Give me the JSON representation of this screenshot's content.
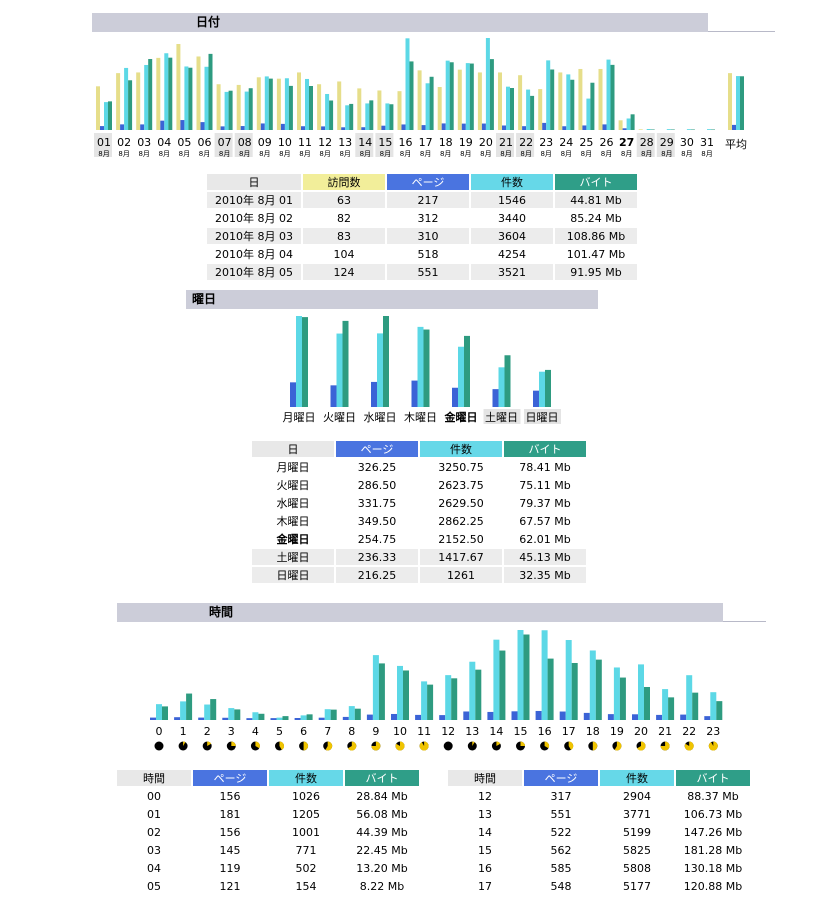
{
  "sections": {
    "date": "日付",
    "weekday": "曜日",
    "hour": "時間"
  },
  "colors": {
    "visits": "#e6de8a",
    "pages": "#3b63d6",
    "files": "#5cd8e6",
    "bytes": "#2e9b80",
    "header_bg": "#cccdd9"
  },
  "chart_data": [
    {
      "type": "bar",
      "name": "daily",
      "categories": [
        "01",
        "02",
        "03",
        "04",
        "05",
        "06",
        "07",
        "08",
        "09",
        "10",
        "11",
        "12",
        "13",
        "14",
        "15",
        "16",
        "17",
        "18",
        "19",
        "20",
        "21",
        "22",
        "23",
        "24",
        "25",
        "26",
        "27",
        "28",
        "29",
        "30",
        "31"
      ],
      "sublabel": "8月",
      "weekend_days": [
        "01",
        "07",
        "08",
        "14",
        "15",
        "21",
        "22",
        "28",
        "29"
      ],
      "current_day": "27",
      "avg_label": "平均",
      "series": [
        {
          "key": "visits",
          "values": [
            63,
            82,
            83,
            104,
            124,
            106,
            66,
            65,
            76,
            74,
            83,
            66,
            70,
            60,
            57,
            56,
            86,
            62,
            87,
            83,
            83,
            79,
            59,
            83,
            88,
            88,
            14,
            1,
            0,
            0,
            0
          ],
          "avg": 82
        },
        {
          "key": "pages",
          "values": [
            217,
            312,
            310,
            518,
            551,
            437,
            201,
            218,
            363,
            339,
            209,
            200,
            150,
            154,
            239,
            308,
            271,
            365,
            354,
            358,
            250,
            212,
            394,
            208,
            252,
            311,
            95,
            1,
            0,
            0,
            0
          ],
          "avg": 283
        },
        {
          "key": "files",
          "values": [
            1546,
            3440,
            3604,
            4254,
            3521,
            3504,
            2112,
            2129,
            2970,
            2868,
            2829,
            1996,
            1369,
            1473,
            1473,
            5081,
            2589,
            3844,
            3708,
            5099,
            2402,
            2240,
            3859,
            3082,
            1741,
            3902,
            638,
            56,
            47,
            45,
            46
          ],
          "avg": 2989
        },
        {
          "key": "bytes",
          "values": [
            1587,
            2756,
            3934,
            4009,
            3452,
            4219,
            2178,
            2316,
            2848,
            2445,
            2438,
            1635,
            1446,
            1642,
            1427,
            3801,
            2950,
            3754,
            3683,
            3929,
            2327,
            1891,
            3353,
            2785,
            2620,
            3610,
            869,
            28,
            28,
            28,
            28
          ],
          "avg": 2978
        }
      ]
    },
    {
      "type": "bar",
      "name": "weekday",
      "categories": [
        "月曜日",
        "火曜日",
        "水曜日",
        "木曜日",
        "金曜日",
        "土曜日",
        "日曜日"
      ],
      "current": "金曜日",
      "series": [
        {
          "key": "pages",
          "values": [
            326.25,
            286.5,
            331.75,
            349.5,
            254.75,
            236.33,
            216.25
          ]
        },
        {
          "key": "files",
          "values": [
            3250.75,
            2623.75,
            2629.5,
            2862.25,
            2152.5,
            1417.67,
            1261
          ]
        },
        {
          "key": "bytes",
          "values": [
            78.41,
            75.11,
            79.37,
            67.57,
            62.01,
            45.13,
            32.35
          ]
        }
      ]
    },
    {
      "type": "bar",
      "name": "hourly",
      "categories": [
        "0",
        "1",
        "2",
        "3",
        "4",
        "5",
        "6",
        "7",
        "8",
        "9",
        "10",
        "11",
        "12",
        "13",
        "14",
        "15",
        "16",
        "17",
        "18",
        "19",
        "20",
        "21",
        "22",
        "23"
      ],
      "series": [
        {
          "key": "pages",
          "values": [
            156,
            181,
            156,
            145,
            119,
            121,
            130,
            150,
            200,
            350,
            390,
            330,
            317,
            551,
            522,
            562,
            585,
            548,
            460,
            380,
            370,
            330,
            350,
            250
          ]
        },
        {
          "key": "files",
          "values": [
            1026,
            1205,
            1001,
            771,
            502,
            154,
            300,
            700,
            900,
            4200,
            3500,
            2500,
            2904,
            3771,
            5199,
            5825,
            5808,
            5177,
            4500,
            3400,
            3600,
            2000,
            2900,
            1800
          ]
        },
        {
          "key": "bytes",
          "values": [
            28.84,
            56.08,
            44.39,
            22.45,
            13.2,
            8.22,
            12,
            22,
            24,
            120,
            105,
            75,
            88.37,
            106.73,
            147.26,
            181.28,
            130.18,
            120.88,
            128,
            90,
            70,
            48,
            58,
            40
          ]
        }
      ]
    }
  ],
  "daily_table": {
    "headers": [
      "日",
      "訪問数",
      "ページ",
      "件数",
      "バイト"
    ],
    "rows": [
      [
        "2010年 8月 01",
        "63",
        "217",
        "1546",
        "44.81 Mb"
      ],
      [
        "2010年 8月 02",
        "82",
        "312",
        "3440",
        "85.24 Mb"
      ],
      [
        "2010年 8月 03",
        "83",
        "310",
        "3604",
        "108.86 Mb"
      ],
      [
        "2010年 8月 04",
        "104",
        "518",
        "4254",
        "101.47 Mb"
      ],
      [
        "2010年 8月 05",
        "124",
        "551",
        "3521",
        "91.95 Mb"
      ]
    ]
  },
  "weekday_table": {
    "headers": [
      "日",
      "ページ",
      "件数",
      "バイト"
    ],
    "rows": [
      [
        "月曜日",
        "326.25",
        "3250.75",
        "78.41 Mb"
      ],
      [
        "火曜日",
        "286.50",
        "2623.75",
        "75.11 Mb"
      ],
      [
        "水曜日",
        "331.75",
        "2629.50",
        "79.37 Mb"
      ],
      [
        "木曜日",
        "349.50",
        "2862.25",
        "67.57 Mb"
      ],
      [
        "金曜日",
        "254.75",
        "2152.50",
        "62.01 Mb"
      ],
      [
        "土曜日",
        "236.33",
        "1417.67",
        "45.13 Mb"
      ],
      [
        "日曜日",
        "216.25",
        "1261",
        "32.35 Mb"
      ]
    ]
  },
  "hour_table_left": {
    "headers": [
      "時間",
      "ページ",
      "件数",
      "バイト"
    ],
    "rows": [
      [
        "00",
        "156",
        "1026",
        "28.84 Mb"
      ],
      [
        "01",
        "181",
        "1205",
        "56.08 Mb"
      ],
      [
        "02",
        "156",
        "1001",
        "44.39 Mb"
      ],
      [
        "03",
        "145",
        "771",
        "22.45 Mb"
      ],
      [
        "04",
        "119",
        "502",
        "13.20 Mb"
      ],
      [
        "05",
        "121",
        "154",
        "8.22 Mb"
      ]
    ]
  },
  "hour_table_right": {
    "headers": [
      "時間",
      "ページ",
      "件数",
      "バイト"
    ],
    "rows": [
      [
        "12",
        "317",
        "2904",
        "88.37 Mb"
      ],
      [
        "13",
        "551",
        "3771",
        "106.73 Mb"
      ],
      [
        "14",
        "522",
        "5199",
        "147.26 Mb"
      ],
      [
        "15",
        "562",
        "5825",
        "181.28 Mb"
      ],
      [
        "16",
        "585",
        "5808",
        "130.18 Mb"
      ],
      [
        "17",
        "548",
        "5177",
        "120.88 Mb"
      ]
    ]
  }
}
